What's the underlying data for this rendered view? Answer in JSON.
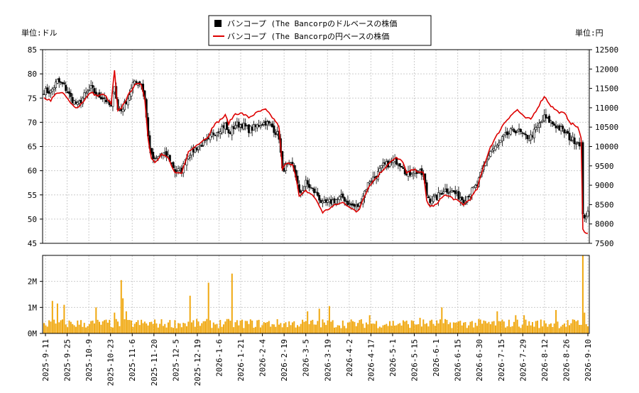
{
  "chart_data": [
    {
      "type": "candlestick+line",
      "legend": [
        {
          "label": "バンコープ (The Bancorpのドルベースの株価",
          "color": "#000000",
          "marker": "square"
        },
        {
          "label": "バンコープ (The Bancorpの円ベースの株価",
          "color": "#dd0000",
          "marker": "line"
        }
      ],
      "left_axis_unit": "単位:ドル",
      "right_axis_unit": "単位:円",
      "y_left": {
        "min": 45,
        "max": 85,
        "ticks": [
          "45",
          "50",
          "55",
          "60",
          "65",
          "70",
          "75",
          "80",
          "85"
        ]
      },
      "y_right": {
        "min": 7500,
        "max": 12500,
        "ticks": [
          "7500",
          "8000",
          "8500",
          "9000",
          "9500",
          "10000",
          "10500",
          "11000",
          "11500",
          "12000",
          "12500"
        ]
      },
      "x_ticks": [
        "2025-9-11",
        "2025-9-25",
        "2025-10-9",
        "2025-10-23",
        "2025-11-6",
        "2025-11-20",
        "2025-12-5",
        "2025-12-19",
        "2026-1-6",
        "2026-1-21",
        "2026-2-4",
        "2026-2-19",
        "2026-3-5",
        "2026-3-19",
        "2026-4-2",
        "2026-4-17",
        "2026-5-1",
        "2026-5-15",
        "2026-6-1",
        "2026-6-15",
        "2026-6-30",
        "2026-7-15",
        "2026-7-29",
        "2026-8-12",
        "2026-8-26",
        "2026-9-10"
      ],
      "usd_close_anchors": [
        [
          0,
          76.5
        ],
        [
          4,
          76.3
        ],
        [
          8,
          78.5
        ],
        [
          12,
          77.5
        ],
        [
          16,
          75
        ],
        [
          20,
          73.5
        ],
        [
          24,
          75.5
        ],
        [
          28,
          77
        ],
        [
          32,
          75.5
        ],
        [
          36,
          75
        ],
        [
          40,
          73
        ],
        [
          42,
          78
        ],
        [
          44,
          72.5
        ],
        [
          46,
          72.5
        ],
        [
          50,
          75
        ],
        [
          54,
          78.5
        ],
        [
          58,
          78
        ],
        [
          60,
          75
        ],
        [
          62,
          67
        ],
        [
          64,
          63
        ],
        [
          66,
          62
        ],
        [
          70,
          63.5
        ],
        [
          74,
          63
        ],
        [
          78,
          60
        ],
        [
          82,
          60
        ],
        [
          84,
          62
        ],
        [
          86,
          63.5
        ],
        [
          90,
          64.5
        ],
        [
          94,
          65.5
        ],
        [
          98,
          66
        ],
        [
          100,
          67.5
        ],
        [
          104,
          68.5
        ],
        [
          108,
          69.5
        ],
        [
          110,
          67.5
        ],
        [
          114,
          69.5
        ],
        [
          118,
          69.5
        ],
        [
          122,
          68.5
        ],
        [
          126,
          69
        ],
        [
          128,
          69.5
        ],
        [
          132,
          70
        ],
        [
          136,
          69
        ],
        [
          138,
          68
        ],
        [
          140,
          67
        ],
        [
          142,
          60
        ],
        [
          144,
          61
        ],
        [
          148,
          61
        ],
        [
          150,
          59
        ],
        [
          152,
          55
        ],
        [
          156,
          57.5
        ],
        [
          160,
          56
        ],
        [
          163,
          55
        ],
        [
          166,
          53
        ],
        [
          170,
          53.5
        ],
        [
          174,
          54
        ],
        [
          178,
          54.5
        ],
        [
          182,
          53
        ],
        [
          186,
          52.5
        ],
        [
          188,
          53
        ],
        [
          190,
          55
        ],
        [
          194,
          58
        ],
        [
          198,
          59
        ],
        [
          202,
          61
        ],
        [
          206,
          61.5
        ],
        [
          210,
          62
        ],
        [
          214,
          61
        ],
        [
          216,
          59
        ],
        [
          220,
          60
        ],
        [
          224,
          59.5
        ],
        [
          226,
          59
        ],
        [
          228,
          55
        ],
        [
          230,
          54
        ],
        [
          234,
          54.5
        ],
        [
          238,
          56
        ],
        [
          242,
          56
        ],
        [
          246,
          55
        ],
        [
          250,
          54
        ],
        [
          254,
          55.5
        ],
        [
          258,
          57
        ],
        [
          262,
          61
        ],
        [
          266,
          64
        ],
        [
          270,
          65
        ],
        [
          274,
          67
        ],
        [
          278,
          68
        ],
        [
          282,
          68.5
        ],
        [
          286,
          67
        ],
        [
          290,
          67
        ],
        [
          294,
          69
        ],
        [
          298,
          71
        ],
        [
          302,
          70
        ],
        [
          306,
          69
        ],
        [
          310,
          68
        ],
        [
          314,
          66.5
        ],
        [
          318,
          66
        ],
        [
          320,
          65.5
        ],
        [
          321,
          50.5
        ],
        [
          324,
          51
        ]
      ],
      "jpy_close_anchors": [
        [
          0,
          11250
        ],
        [
          4,
          11200
        ],
        [
          8,
          11400
        ],
        [
          12,
          11350
        ],
        [
          16,
          11100
        ],
        [
          20,
          11000
        ],
        [
          24,
          11200
        ],
        [
          28,
          11400
        ],
        [
          32,
          11300
        ],
        [
          36,
          11350
        ],
        [
          38,
          11200
        ],
        [
          40,
          11100
        ],
        [
          42,
          11950
        ],
        [
          44,
          10900
        ],
        [
          46,
          11000
        ],
        [
          50,
          11300
        ],
        [
          54,
          11600
        ],
        [
          58,
          11600
        ],
        [
          60,
          11250
        ],
        [
          62,
          10200
        ],
        [
          64,
          9700
        ],
        [
          66,
          9600
        ],
        [
          70,
          9800
        ],
        [
          74,
          9700
        ],
        [
          78,
          9300
        ],
        [
          82,
          9300
        ],
        [
          84,
          9600
        ],
        [
          86,
          9850
        ],
        [
          90,
          10000
        ],
        [
          94,
          10150
        ],
        [
          98,
          10250
        ],
        [
          100,
          10500
        ],
        [
          104,
          10650
        ],
        [
          108,
          10800
        ],
        [
          110,
          10600
        ],
        [
          114,
          10850
        ],
        [
          118,
          10850
        ],
        [
          122,
          10750
        ],
        [
          126,
          10850
        ],
        [
          128,
          10900
        ],
        [
          132,
          10950
        ],
        [
          136,
          10750
        ],
        [
          138,
          10650
        ],
        [
          140,
          10500
        ],
        [
          142,
          9400
        ],
        [
          144,
          9550
        ],
        [
          148,
          9550
        ],
        [
          150,
          9250
        ],
        [
          152,
          8700
        ],
        [
          156,
          8850
        ],
        [
          160,
          8750
        ],
        [
          163,
          8550
        ],
        [
          166,
          8300
        ],
        [
          170,
          8400
        ],
        [
          174,
          8500
        ],
        [
          178,
          8550
        ],
        [
          182,
          8450
        ],
        [
          186,
          8300
        ],
        [
          188,
          8400
        ],
        [
          190,
          8650
        ],
        [
          194,
          9000
        ],
        [
          198,
          9200
        ],
        [
          202,
          9400
        ],
        [
          206,
          9600
        ],
        [
          210,
          9700
        ],
        [
          214,
          9600
        ],
        [
          216,
          9300
        ],
        [
          220,
          9400
        ],
        [
          224,
          9350
        ],
        [
          226,
          9300
        ],
        [
          228,
          8600
        ],
        [
          230,
          8450
        ],
        [
          234,
          8500
        ],
        [
          238,
          8750
        ],
        [
          242,
          8700
        ],
        [
          246,
          8600
        ],
        [
          250,
          8500
        ],
        [
          254,
          8650
        ],
        [
          258,
          8900
        ],
        [
          262,
          9500
        ],
        [
          266,
          10000
        ],
        [
          270,
          10300
        ],
        [
          274,
          10600
        ],
        [
          278,
          10800
        ],
        [
          282,
          10950
        ],
        [
          286,
          10750
        ],
        [
          290,
          10700
        ],
        [
          294,
          11000
        ],
        [
          298,
          11300
        ],
        [
          302,
          11050
        ],
        [
          306,
          10900
        ],
        [
          310,
          10850
        ],
        [
          314,
          10600
        ],
        [
          318,
          10500
        ],
        [
          320,
          10200
        ],
        [
          321,
          7850
        ],
        [
          324,
          7750
        ]
      ],
      "volume_axis": {
        "min": 0,
        "max": 3000000,
        "ticks": [
          "0M",
          "1M",
          "2M"
        ]
      },
      "volume_spikes": [
        [
          5,
          1250000
        ],
        [
          8,
          1150000
        ],
        [
          12,
          1100000
        ],
        [
          31,
          1000000
        ],
        [
          42,
          800000
        ],
        [
          46,
          2050000
        ],
        [
          47,
          1350000
        ],
        [
          49,
          850000
        ],
        [
          87,
          1450000
        ],
        [
          98,
          1950000
        ],
        [
          112,
          2300000
        ],
        [
          157,
          850000
        ],
        [
          164,
          950000
        ],
        [
          170,
          1050000
        ],
        [
          194,
          700000
        ],
        [
          224,
          600000
        ],
        [
          237,
          1000000
        ],
        [
          270,
          850000
        ],
        [
          281,
          700000
        ],
        [
          286,
          700000
        ],
        [
          305,
          900000
        ],
        [
          321,
          3000000
        ],
        [
          322,
          800000
        ]
      ],
      "volume_base": 400000,
      "n_sessions": 325,
      "colors": {
        "usd": "#000000",
        "jpy": "#dd0000",
        "volume": "#f0a810",
        "grid": "#cccccc"
      }
    }
  ]
}
